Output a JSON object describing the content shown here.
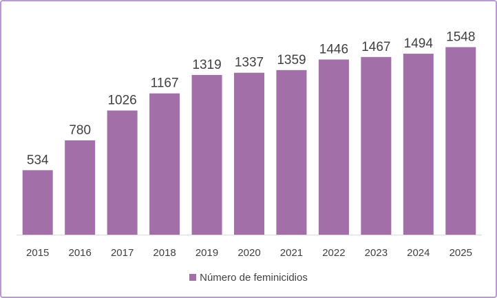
{
  "chart_data": {
    "type": "bar",
    "categories": [
      "2015",
      "2016",
      "2017",
      "2018",
      "2019",
      "2020",
      "2021",
      "2022",
      "2023",
      "2024",
      "2025"
    ],
    "series": [
      {
        "name": "Número de feminicidios",
        "values": [
          534,
          780,
          1026,
          1167,
          1319,
          1337,
          1359,
          1446,
          1467,
          1494,
          1548
        ]
      }
    ],
    "data_labels": true,
    "title": "",
    "xlabel": "",
    "ylabel": "",
    "ylim": [
      0,
      1600
    ],
    "grid": false,
    "legend": "bottom",
    "colors": {
      "bar": "#a26fa8",
      "text": "#404040",
      "border": "#b79bd0"
    }
  }
}
